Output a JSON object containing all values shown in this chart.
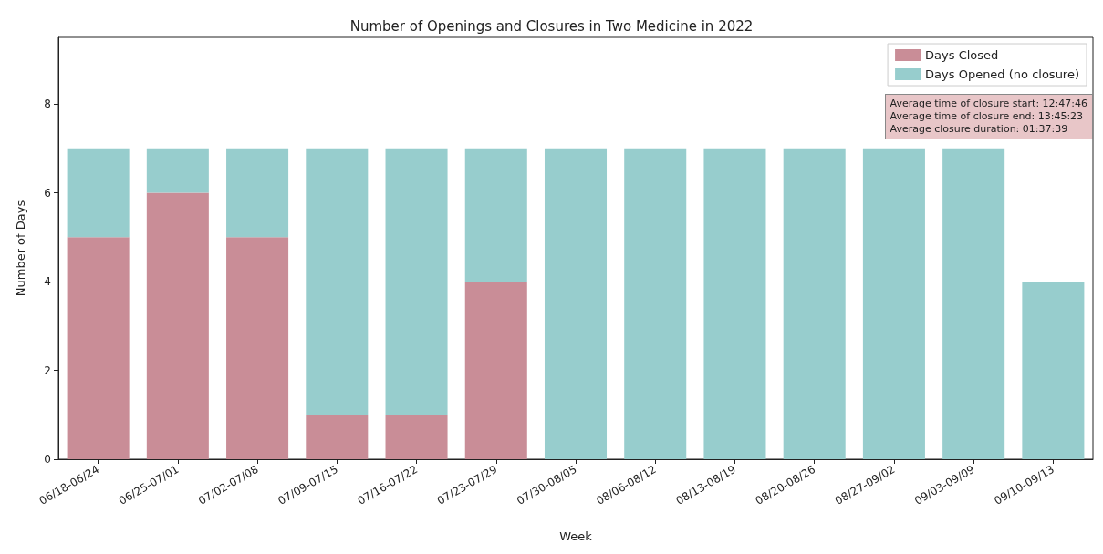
{
  "chart_data": {
    "type": "bar",
    "title": "Number of Openings and Closures in Two Medicine in 2022",
    "xlabel": "Week",
    "ylabel": "Number of Days",
    "categories": [
      "06/18-06/24",
      "06/25-07/01",
      "07/02-07/08",
      "07/09-07/15",
      "07/16-07/22",
      "07/23-07/29",
      "07/30-08/05",
      "08/06-08/12",
      "08/13-08/19",
      "08/20-08/26",
      "08/27-09/02",
      "09/03-09/09",
      "09/10-09/13"
    ],
    "series": [
      {
        "name": "Days Closed",
        "color": "#c98d97",
        "values": [
          5,
          6,
          5,
          1,
          1,
          4,
          0,
          0,
          0,
          0,
          0,
          0,
          0
        ]
      },
      {
        "name": "Days Opened (no closure)",
        "color": "#97cdcd",
        "values": [
          2,
          1,
          2,
          6,
          6,
          3,
          7,
          7,
          7,
          7,
          7,
          7,
          4
        ]
      }
    ],
    "stacked": true,
    "ylim": [
      0,
      9.5
    ],
    "yticks": [
      0,
      2,
      4,
      6,
      8
    ],
    "grid": false,
    "legend": "top right",
    "annotations": [
      "Average time of closure start: 12:47:46",
      "Average time of closure end: 13:45:23",
      "Average closure duration: 01:37:39"
    ]
  }
}
